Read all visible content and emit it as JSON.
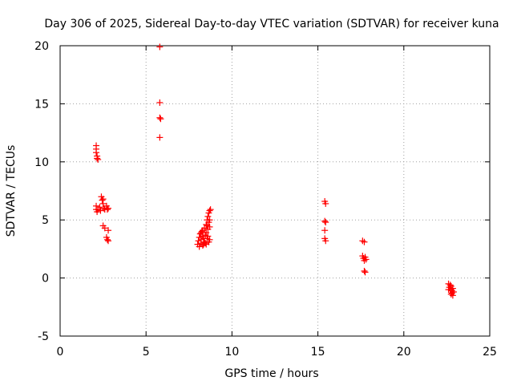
{
  "chart_data": {
    "type": "scatter",
    "title": "Day 306 of 2025, Sidereal Day-to-day VTEC variation (SDTVAR) for receiver kuna",
    "xlabel": "GPS time / hours",
    "ylabel": "SDTVAR / TECUs",
    "xlim": [
      0,
      25
    ],
    "ylim": [
      -5,
      20
    ],
    "xticks": [
      0,
      5,
      10,
      15,
      20,
      25
    ],
    "yticks": [
      -5,
      0,
      5,
      10,
      15,
      20
    ],
    "grid": true,
    "marker": "+",
    "series": [
      {
        "name": "SDTVAR",
        "color": "#ff0000",
        "points": [
          [
            2.1,
            11.4
          ],
          [
            2.1,
            11.1
          ],
          [
            2.1,
            10.8
          ],
          [
            2.15,
            10.5
          ],
          [
            2.15,
            10.3
          ],
          [
            2.2,
            10.2
          ],
          [
            2.1,
            6.2
          ],
          [
            2.1,
            5.9
          ],
          [
            2.15,
            5.7
          ],
          [
            2.2,
            5.9
          ],
          [
            2.3,
            6.1
          ],
          [
            2.35,
            5.8
          ],
          [
            2.4,
            7.0
          ],
          [
            2.45,
            6.7
          ],
          [
            2.5,
            6.4
          ],
          [
            2.5,
            6.8
          ],
          [
            2.55,
            6.0
          ],
          [
            2.6,
            5.9
          ],
          [
            2.7,
            6.2
          ],
          [
            2.75,
            5.9
          ],
          [
            2.8,
            6.0
          ],
          [
            2.5,
            4.5
          ],
          [
            2.6,
            4.3
          ],
          [
            2.8,
            4.1
          ],
          [
            2.7,
            3.5
          ],
          [
            2.75,
            3.3
          ],
          [
            2.8,
            3.2
          ],
          [
            5.8,
            19.9
          ],
          [
            5.8,
            15.1
          ],
          [
            5.8,
            13.8
          ],
          [
            5.85,
            13.7
          ],
          [
            5.8,
            12.1
          ],
          [
            8.0,
            2.9
          ],
          [
            8.05,
            3.2
          ],
          [
            8.1,
            3.5
          ],
          [
            8.1,
            2.7
          ],
          [
            8.15,
            3.8
          ],
          [
            8.2,
            3.0
          ],
          [
            8.2,
            3.3
          ],
          [
            8.25,
            4.0
          ],
          [
            8.3,
            3.6
          ],
          [
            8.3,
            2.8
          ],
          [
            8.35,
            3.4
          ],
          [
            8.4,
            4.3
          ],
          [
            8.4,
            3.1
          ],
          [
            8.45,
            3.7
          ],
          [
            8.5,
            4.6
          ],
          [
            8.5,
            3.9
          ],
          [
            8.5,
            2.9
          ],
          [
            8.55,
            5.0
          ],
          [
            8.55,
            3.4
          ],
          [
            8.6,
            5.3
          ],
          [
            8.6,
            4.2
          ],
          [
            8.6,
            3.6
          ],
          [
            8.65,
            5.6
          ],
          [
            8.65,
            4.8
          ],
          [
            8.65,
            3.1
          ],
          [
            8.7,
            5.8
          ],
          [
            8.7,
            5.0
          ],
          [
            8.7,
            4.4
          ],
          [
            8.7,
            3.3
          ],
          [
            8.2,
            3.9
          ],
          [
            8.35,
            2.9
          ],
          [
            8.45,
            3.0
          ],
          [
            8.55,
            4.5
          ],
          [
            8.3,
            4.1
          ],
          [
            8.75,
            5.9
          ],
          [
            15.4,
            6.6
          ],
          [
            15.45,
            6.4
          ],
          [
            15.4,
            4.9
          ],
          [
            15.45,
            4.8
          ],
          [
            15.4,
            4.1
          ],
          [
            15.4,
            3.4
          ],
          [
            15.45,
            3.2
          ],
          [
            17.6,
            3.2
          ],
          [
            17.7,
            3.1
          ],
          [
            17.6,
            1.9
          ],
          [
            17.65,
            1.7
          ],
          [
            17.7,
            1.5
          ],
          [
            17.75,
            1.8
          ],
          [
            17.8,
            1.6
          ],
          [
            17.7,
            0.6
          ],
          [
            17.75,
            0.5
          ],
          [
            22.6,
            -0.5
          ],
          [
            22.65,
            -0.8
          ],
          [
            22.7,
            -0.6
          ],
          [
            22.7,
            -1.0
          ],
          [
            22.75,
            -0.7
          ],
          [
            22.8,
            -1.1
          ],
          [
            22.8,
            -1.3
          ],
          [
            22.85,
            -0.9
          ],
          [
            22.85,
            -1.5
          ],
          [
            22.9,
            -1.2
          ],
          [
            22.6,
            -1.0
          ],
          [
            22.75,
            -1.4
          ]
        ]
      }
    ]
  }
}
